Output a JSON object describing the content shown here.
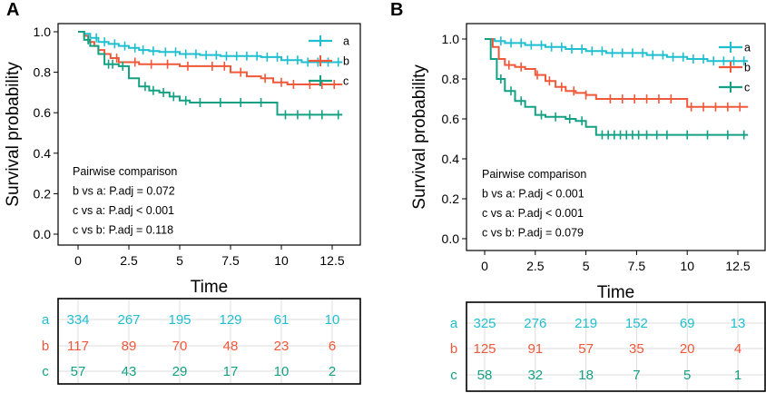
{
  "colors": {
    "a": "#1FBFD0",
    "b": "#F0583A",
    "c": "#14A083",
    "axis": "#000000",
    "grid": "#DDDDDD"
  },
  "chart_data": [
    {
      "type": "line",
      "panel": "A",
      "xlabel": "Time",
      "ylabel": "Survival probability",
      "xlim": [
        0,
        13
      ],
      "ylim": [
        0,
        1
      ],
      "xticks": [
        "0",
        "2.5",
        "5",
        "7.5",
        "10",
        "12.5"
      ],
      "yticks": [
        "0.0",
        "0.2",
        "0.4",
        "0.6",
        "0.8",
        "1.0"
      ],
      "legend": [
        "a",
        "b",
        "c"
      ],
      "legend_position": "top-right",
      "series": [
        {
          "name": "a",
          "x": [
            0,
            0.3,
            0.6,
            1.0,
            1.5,
            2.0,
            2.5,
            3.0,
            3.5,
            4.0,
            5.0,
            6.0,
            7.0,
            8.0,
            9.0,
            10.0,
            11.0,
            12.0,
            13.0
          ],
          "y": [
            1.0,
            0.99,
            0.97,
            0.95,
            0.94,
            0.93,
            0.92,
            0.91,
            0.905,
            0.9,
            0.89,
            0.885,
            0.88,
            0.88,
            0.875,
            0.86,
            0.85,
            0.85,
            0.85
          ],
          "censor": [
            0.9,
            1.3,
            1.8,
            2.3,
            2.8,
            3.2,
            3.7,
            4.3,
            4.8,
            5.3,
            5.8,
            6.3,
            6.8,
            7.3,
            7.8,
            8.3,
            8.8,
            9.3,
            9.8,
            10.3,
            10.8,
            11.3,
            11.8,
            12.3,
            12.8
          ]
        },
        {
          "name": "b",
          "x": [
            0,
            0.3,
            0.5,
            0.8,
            1.0,
            1.3,
            1.6,
            2.0,
            2.4,
            3.0,
            4.0,
            5.0,
            6.0,
            7.5,
            8.3,
            9.0,
            9.6,
            10.3,
            11.0,
            13.0
          ],
          "y": [
            1.0,
            0.98,
            0.95,
            0.93,
            0.91,
            0.89,
            0.87,
            0.85,
            0.85,
            0.84,
            0.84,
            0.83,
            0.83,
            0.8,
            0.78,
            0.77,
            0.75,
            0.74,
            0.74,
            0.74
          ],
          "censor": [
            1.9,
            2.8,
            3.6,
            4.4,
            5.4,
            6.6,
            7.2,
            8.0,
            9.2,
            10.0,
            10.6,
            11.4,
            12.0,
            12.6
          ]
        },
        {
          "name": "c",
          "x": [
            0,
            0.3,
            0.6,
            1.0,
            1.3,
            2.0,
            2.5,
            3.0,
            3.5,
            4.0,
            4.5,
            5.0,
            5.5,
            6.0,
            9.8,
            13.0
          ],
          "y": [
            1.0,
            0.96,
            0.93,
            0.89,
            0.84,
            0.83,
            0.77,
            0.73,
            0.71,
            0.7,
            0.68,
            0.66,
            0.65,
            0.65,
            0.59,
            0.59
          ],
          "censor": [
            0.5,
            1.5,
            1.7,
            2.2,
            3.3,
            3.7,
            4.2,
            4.7,
            5.3,
            6.0,
            7.0,
            8.0,
            9.0,
            10.2,
            10.8,
            11.4,
            12.0,
            12.8
          ]
        }
      ],
      "annotations": [
        "Pairwise comparison",
        "b vs a: P.adj = 0.072",
        "c vs a: P.adj < 0.001",
        "c vs b: P.adj = 0.118"
      ],
      "risk_table": {
        "rows": [
          "a",
          "b",
          "c"
        ],
        "values": [
          [
            334,
            267,
            195,
            129,
            61,
            10
          ],
          [
            117,
            89,
            70,
            48,
            23,
            6
          ],
          [
            57,
            43,
            29,
            17,
            10,
            2
          ]
        ]
      }
    },
    {
      "type": "line",
      "panel": "B",
      "xlabel": "Time",
      "ylabel": "Survival probability",
      "xlim": [
        0,
        13
      ],
      "ylim": [
        0,
        1
      ],
      "xticks": [
        "0",
        "2.5",
        "5",
        "7.5",
        "10",
        "12.5"
      ],
      "yticks": [
        "0.0",
        "0.2",
        "0.4",
        "0.6",
        "0.8",
        "1.0"
      ],
      "legend": [
        "a",
        "b",
        "c"
      ],
      "legend_position": "top-right",
      "series": [
        {
          "name": "a",
          "x": [
            0,
            0.5,
            1.0,
            2.0,
            3.0,
            4.0,
            5.0,
            6.0,
            7.0,
            8.0,
            9.0,
            10.0,
            11.0,
            12.0,
            13.0
          ],
          "y": [
            1.0,
            0.99,
            0.98,
            0.97,
            0.96,
            0.95,
            0.94,
            0.93,
            0.93,
            0.92,
            0.91,
            0.9,
            0.89,
            0.89,
            0.89
          ],
          "censor": [
            0.8,
            1.3,
            1.8,
            2.3,
            2.8,
            3.3,
            3.8,
            4.3,
            4.8,
            5.3,
            5.8,
            6.3,
            6.8,
            7.3,
            7.8,
            8.3,
            8.8,
            9.3,
            9.8,
            10.3,
            10.8,
            11.3,
            11.8,
            12.3,
            12.8
          ]
        },
        {
          "name": "b",
          "x": [
            0,
            0.4,
            0.7,
            1.0,
            1.5,
            2.0,
            2.5,
            3.0,
            3.5,
            4.0,
            4.5,
            5.0,
            5.5,
            6.0,
            10.0,
            13.0
          ],
          "y": [
            1.0,
            0.96,
            0.9,
            0.87,
            0.86,
            0.85,
            0.82,
            0.79,
            0.76,
            0.74,
            0.73,
            0.72,
            0.7,
            0.7,
            0.66,
            0.66
          ],
          "censor": [
            1.2,
            1.8,
            2.6,
            3.2,
            3.8,
            4.4,
            5.0,
            6.2,
            6.8,
            7.4,
            8.0,
            8.6,
            9.2,
            10.2,
            10.8,
            11.4,
            12.0,
            12.6
          ]
        },
        {
          "name": "c",
          "x": [
            0,
            0.3,
            0.6,
            1.0,
            1.5,
            2.0,
            2.5,
            3.0,
            4.0,
            4.5,
            5.0,
            5.5,
            13.0
          ],
          "y": [
            1.0,
            0.9,
            0.8,
            0.74,
            0.69,
            0.66,
            0.62,
            0.61,
            0.6,
            0.59,
            0.56,
            0.52,
            0.52
          ],
          "censor": [
            0.8,
            1.3,
            1.8,
            2.8,
            3.5,
            4.2,
            4.8,
            5.8,
            6.1,
            6.4,
            6.7,
            7.0,
            7.3,
            7.6,
            8.0,
            8.5,
            9.0,
            10.0,
            11.0,
            12.0,
            12.8
          ]
        }
      ],
      "annotations": [
        "Pairwise comparison",
        "b vs a: P.adj < 0.001",
        "c vs a: P.adj < 0.001",
        "c vs b: P.adj = 0.079"
      ],
      "risk_table": {
        "rows": [
          "a",
          "b",
          "c"
        ],
        "values": [
          [
            325,
            276,
            219,
            152,
            69,
            13
          ],
          [
            125,
            91,
            57,
            35,
            20,
            4
          ],
          [
            58,
            32,
            18,
            7,
            5,
            1
          ]
        ]
      }
    }
  ]
}
